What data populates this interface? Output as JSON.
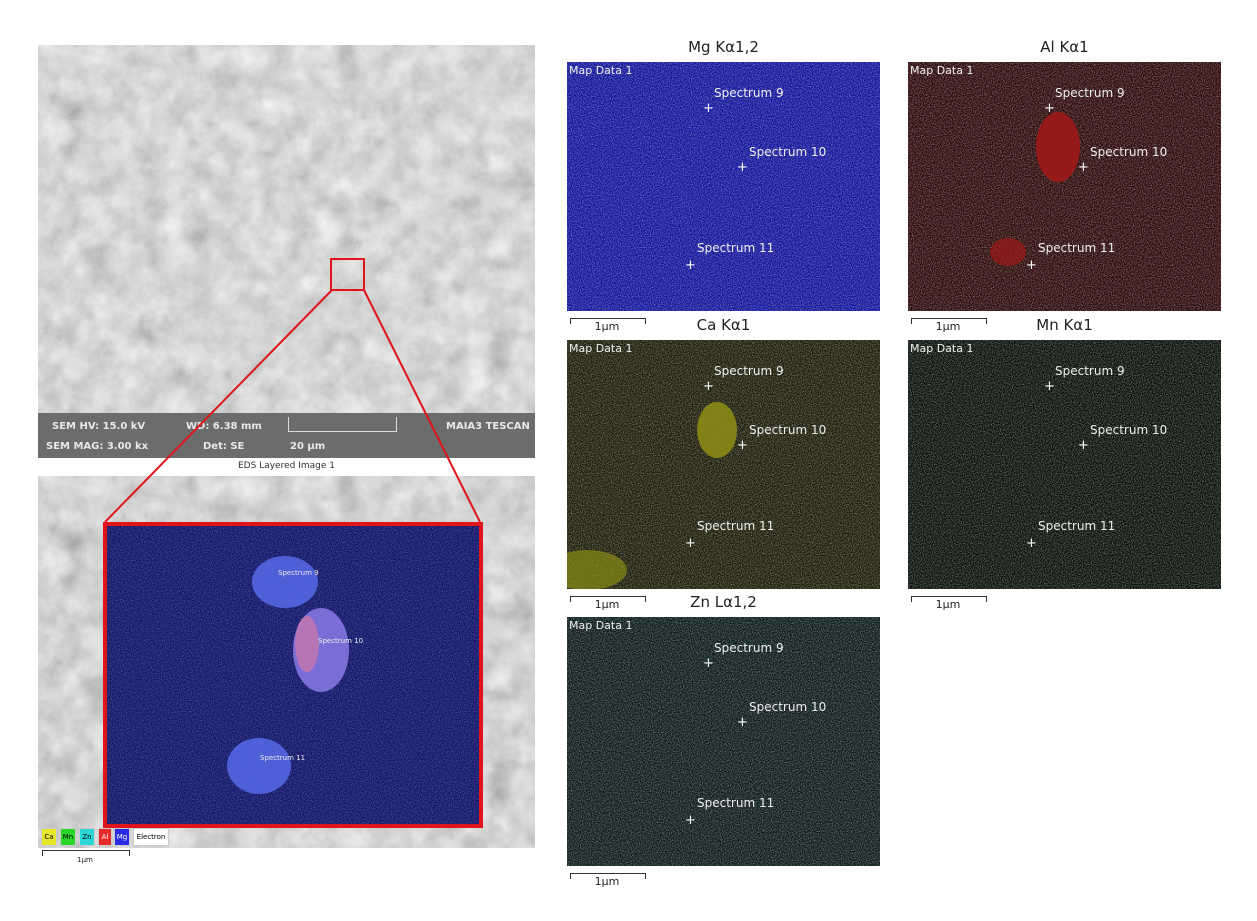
{
  "sem_image": {
    "hv": "SEM HV: 15.0 kV",
    "wd": "WD: 6.38 mm",
    "mag": "SEM MAG: 3.00 kx",
    "det": "Det: SE",
    "scale": "20 μm",
    "brand": "MAIA3 TESCAN"
  },
  "layered": {
    "caption": "EDS Layered Image 1",
    "map_label": "Map Data 1",
    "spectra": [
      "Spectrum 9",
      "Spectrum 10",
      "Spectrum 11"
    ],
    "legend": [
      {
        "label": "Ca",
        "color": "#e6e62a"
      },
      {
        "label": "Mn",
        "color": "#2ad62a"
      },
      {
        "label": "Zn",
        "color": "#2ad6d6"
      },
      {
        "label": "Al",
        "color": "#e62a2a"
      },
      {
        "label": "Mg",
        "color": "#2a2ae6"
      },
      {
        "label": "Electron",
        "color": "#ffffff"
      }
    ],
    "scale": "1μm"
  },
  "maps": [
    {
      "title": "Mg Kα1,2",
      "color": "#1a1aa8",
      "bg": "#10139a"
    },
    {
      "title": "Al Kα1",
      "color": "#a01818",
      "bg": "#2a0606"
    },
    {
      "title": "Ca Kα1",
      "color": "#8a8a14",
      "bg": "#1a1a06"
    },
    {
      "title": "Mn Kα1",
      "color": "#1a3a1a",
      "bg": "#060d06"
    },
    {
      "title": "Zn Lα1,2",
      "color": "#1a6a6a",
      "bg": "#081818"
    }
  ],
  "map_label": "Map Data 1",
  "spectra": [
    "Spectrum 9",
    "Spectrum 10",
    "Spectrum 11"
  ],
  "scale_label": "1μm"
}
